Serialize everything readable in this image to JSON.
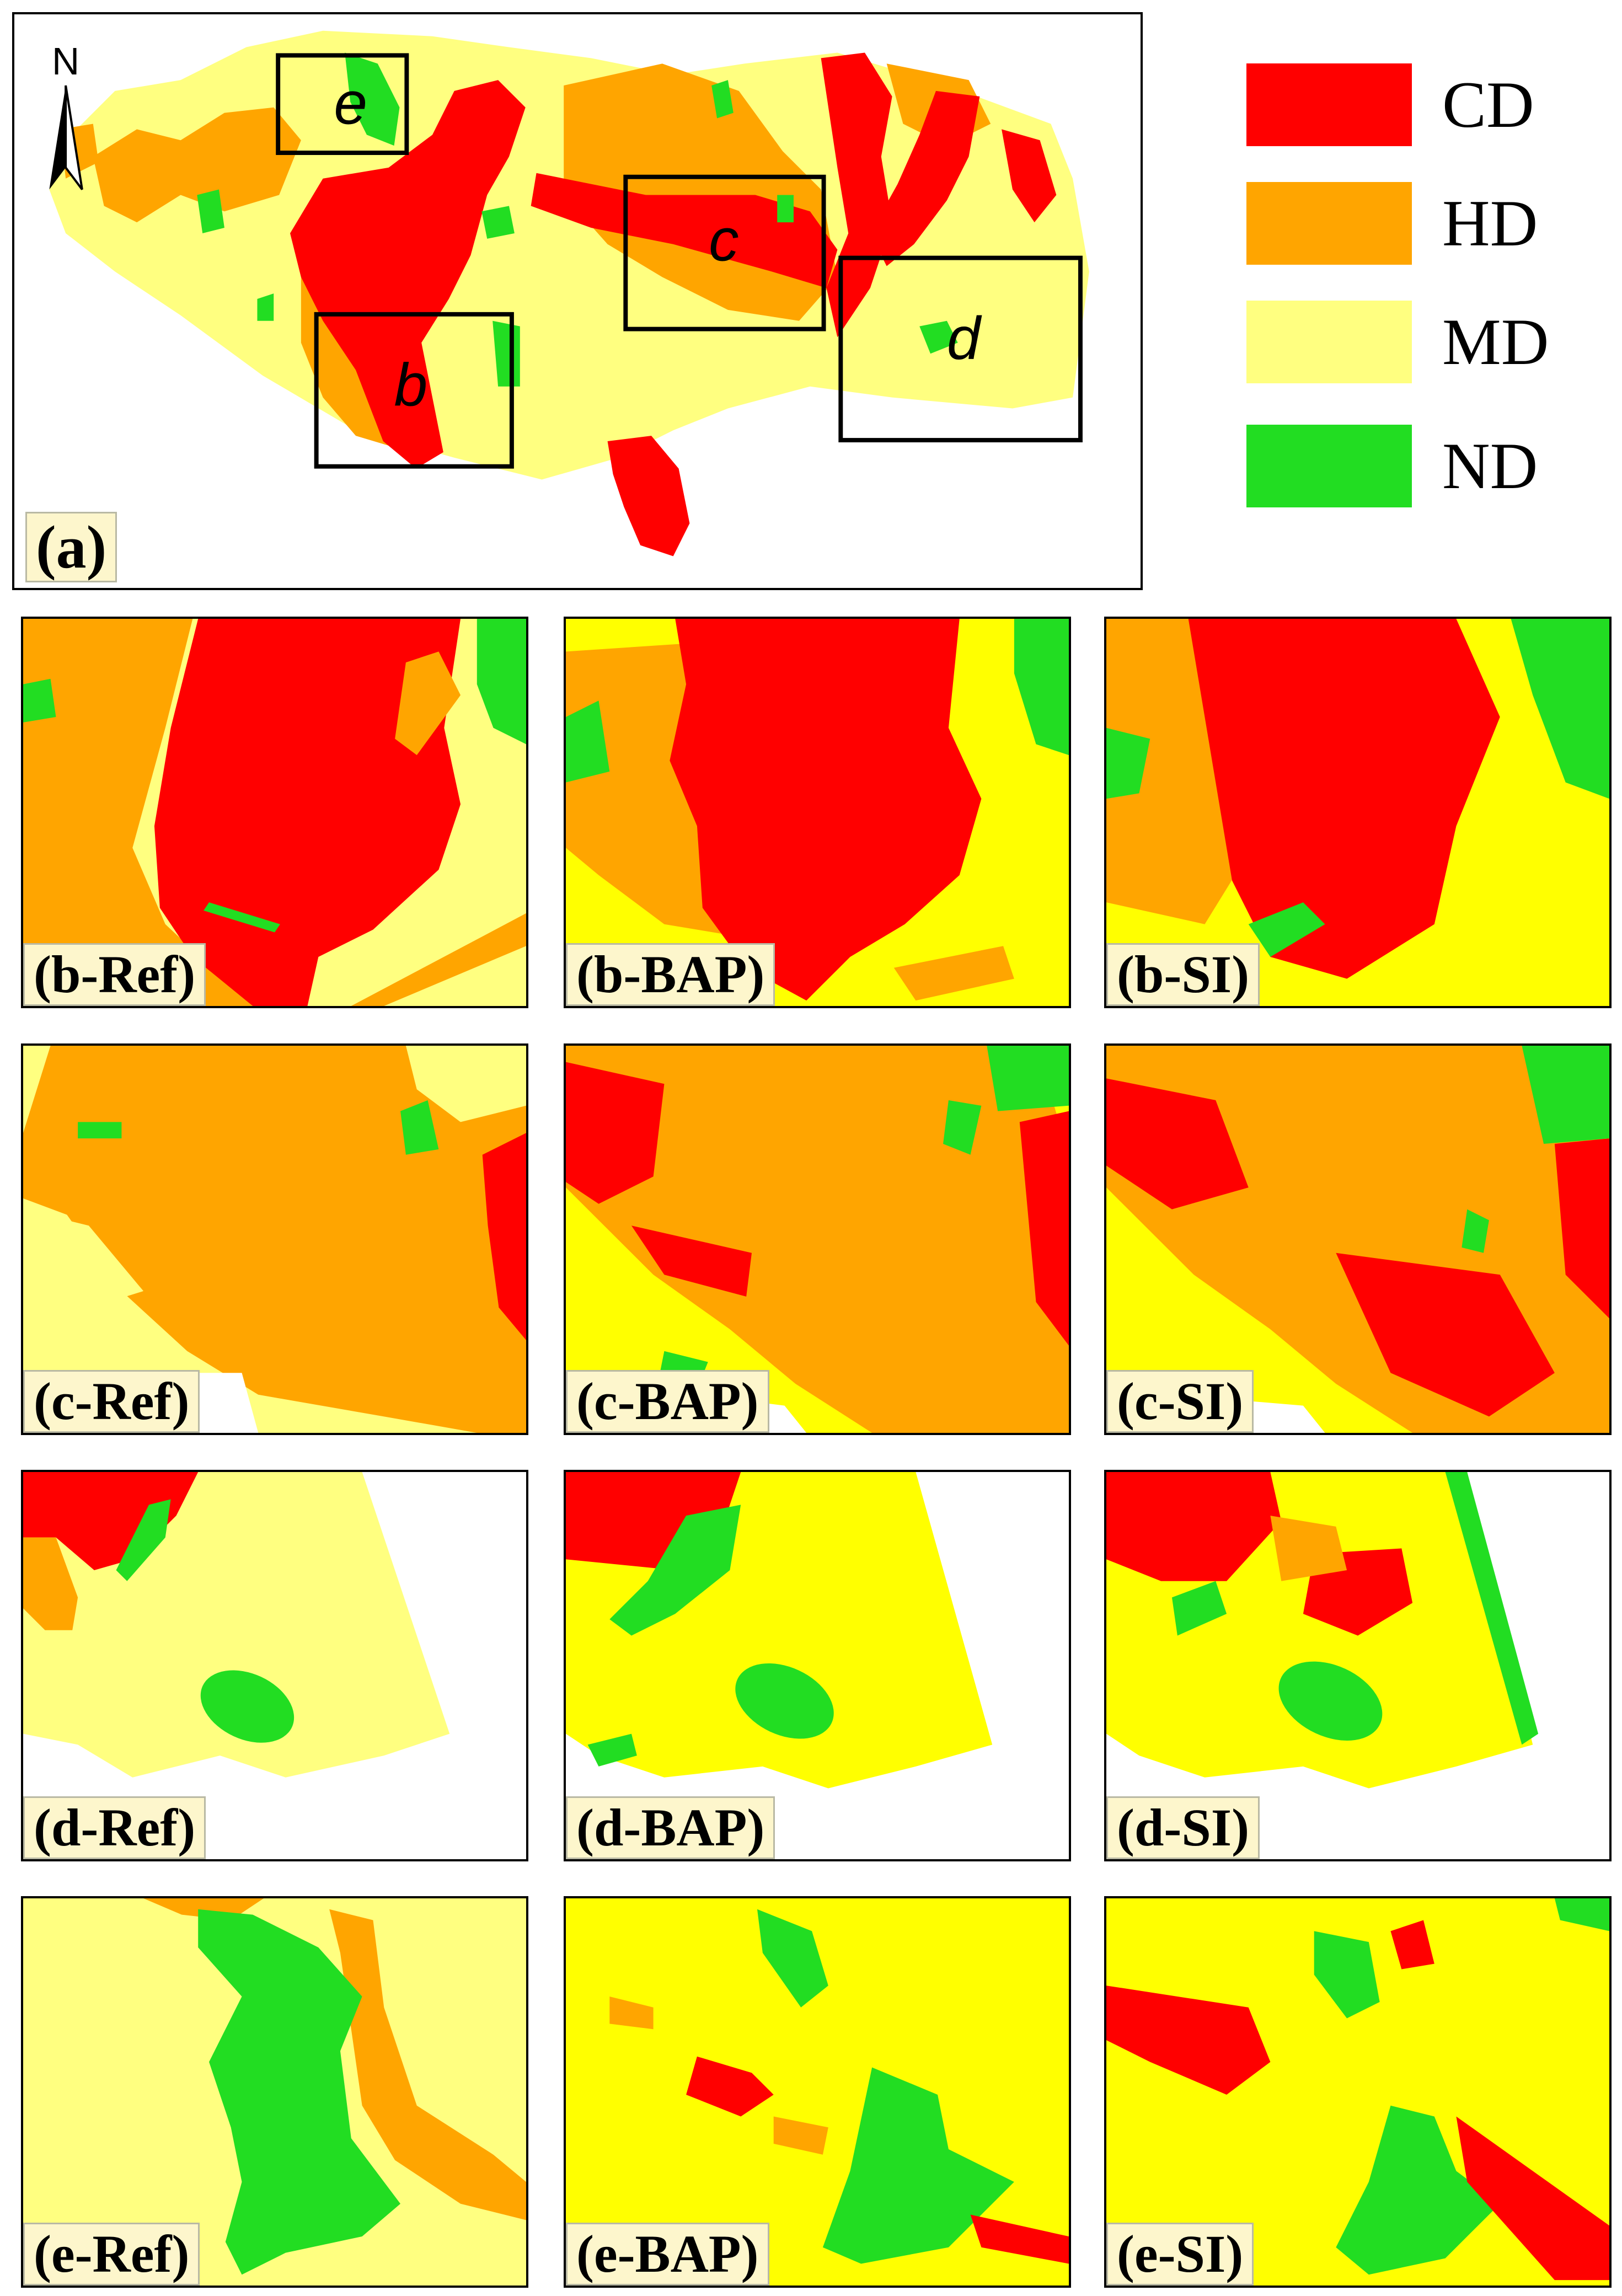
{
  "colors": {
    "CD": "#ff0000",
    "HD": "#ffa500",
    "MD": "#ffff80",
    "ND": "#22dd22",
    "MD_map": "#ffff00"
  },
  "north_label": "N",
  "overview": {
    "label": "(a)",
    "roi_labels": {
      "b": "b",
      "c": "c",
      "d": "d",
      "e": "e"
    }
  },
  "legend": [
    {
      "key": "CD",
      "label": "CD"
    },
    {
      "key": "HD",
      "label": "HD"
    },
    {
      "key": "MD",
      "label": "MD"
    },
    {
      "key": "ND",
      "label": "ND"
    }
  ],
  "panels": {
    "b_ref": "(b-Ref)",
    "b_bap": "(b-BAP)",
    "b_si": "(b-SI)",
    "c_ref": "(c-Ref)",
    "c_bap": "(c-BAP)",
    "c_si": "(c-SI)",
    "d_ref": "(d-Ref)",
    "d_bap": "(d-BAP)",
    "d_si": "(d-SI)",
    "e_ref": "(e-Ref)",
    "e_bap": "(e-BAP)",
    "e_si": "(e-SI)"
  }
}
